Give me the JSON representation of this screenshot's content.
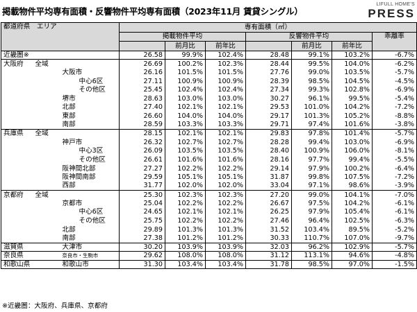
{
  "title": "掲載物件平均専有面積・反響物件平均専有面積（2023年11月 賃貸シングル）",
  "logo": {
    "top": "LIFULL HOME'S",
    "bottom": "PRESS"
  },
  "header": {
    "col_region": "都道府県　エリア",
    "col_area": "専有面積（㎡）",
    "listed": "掲載物件平均",
    "response": "反響物件平均",
    "mom": "前月比",
    "yoy": "前年比",
    "gap": "乖離率"
  },
  "rows": [
    {
      "pref": "近畿圏※",
      "area": "",
      "indent": 0,
      "l": "26.58",
      "lm": "99.9%",
      "ly": "102.4%",
      "r": "28.48",
      "rm": "99.1%",
      "ry": "103.2%",
      "g": "-6.7%",
      "grp": true
    },
    {
      "pref": "大阪府",
      "area": "全域",
      "indent": 0,
      "l": "26.69",
      "lm": "100.2%",
      "ly": "102.3%",
      "r": "28.44",
      "rm": "99.5%",
      "ry": "104.0%",
      "g": "-6.2%",
      "grp": true
    },
    {
      "pref": "",
      "area": "大阪市",
      "indent": 1,
      "l": "26.16",
      "lm": "101.5%",
      "ly": "101.5%",
      "r": "27.76",
      "rm": "99.0%",
      "ry": "103.5%",
      "g": "-5.7%"
    },
    {
      "pref": "",
      "area": "中心6区",
      "indent": 2,
      "l": "27.11",
      "lm": "100.9%",
      "ly": "100.9%",
      "r": "28.39",
      "rm": "98.5%",
      "ry": "104.5%",
      "g": "-4.5%"
    },
    {
      "pref": "",
      "area": "その他区",
      "indent": 2,
      "l": "25.45",
      "lm": "102.4%",
      "ly": "102.4%",
      "r": "27.34",
      "rm": "99.3%",
      "ry": "102.8%",
      "g": "-6.9%"
    },
    {
      "pref": "",
      "area": "堺市",
      "indent": 1,
      "l": "28.63",
      "lm": "103.0%",
      "ly": "103.0%",
      "r": "30.27",
      "rm": "96.1%",
      "ry": "99.5%",
      "g": "-5.4%"
    },
    {
      "pref": "",
      "area": "北部",
      "indent": 1,
      "l": "27.40",
      "lm": "102.1%",
      "ly": "102.1%",
      "r": "29.53",
      "rm": "101.0%",
      "ry": "104.2%",
      "g": "-7.2%"
    },
    {
      "pref": "",
      "area": "東部",
      "indent": 1,
      "l": "26.60",
      "lm": "104.0%",
      "ly": "104.0%",
      "r": "29.17",
      "rm": "101.3%",
      "ry": "105.2%",
      "g": "-8.8%"
    },
    {
      "pref": "",
      "area": "南部",
      "indent": 1,
      "l": "28.59",
      "lm": "103.3%",
      "ly": "103.3%",
      "r": "29.71",
      "rm": "97.4%",
      "ry": "101.6%",
      "g": "-3.8%"
    },
    {
      "pref": "兵庫県",
      "area": "全域",
      "indent": 0,
      "l": "28.15",
      "lm": "102.1%",
      "ly": "102.1%",
      "r": "29.83",
      "rm": "97.8%",
      "ry": "101.4%",
      "g": "-5.7%",
      "grp": true
    },
    {
      "pref": "",
      "area": "神戸市",
      "indent": 1,
      "l": "26.32",
      "lm": "102.7%",
      "ly": "102.7%",
      "r": "28.28",
      "rm": "99.4%",
      "ry": "103.0%",
      "g": "-6.9%"
    },
    {
      "pref": "",
      "area": "中心3区",
      "indent": 2,
      "l": "26.09",
      "lm": "103.5%",
      "ly": "103.5%",
      "r": "28.40",
      "rm": "100.9%",
      "ry": "106.0%",
      "g": "-8.1%"
    },
    {
      "pref": "",
      "area": "その他区",
      "indent": 2,
      "l": "26.61",
      "lm": "101.6%",
      "ly": "101.6%",
      "r": "28.16",
      "rm": "97.7%",
      "ry": "99.4%",
      "g": "-5.5%"
    },
    {
      "pref": "",
      "area": "阪神間北部",
      "indent": 1,
      "l": "27.27",
      "lm": "102.2%",
      "ly": "102.2%",
      "r": "29.14",
      "rm": "97.9%",
      "ry": "100.2%",
      "g": "-6.4%"
    },
    {
      "pref": "",
      "area": "阪神間南部",
      "indent": 1,
      "l": "29.59",
      "lm": "105.1%",
      "ly": "105.1%",
      "r": "31.87",
      "rm": "99.8%",
      "ry": "107.5%",
      "g": "-7.2%"
    },
    {
      "pref": "",
      "area": "西部",
      "indent": 1,
      "l": "31.77",
      "lm": "102.0%",
      "ly": "102.0%",
      "r": "33.04",
      "rm": "97.1%",
      "ry": "98.6%",
      "g": "-3.9%"
    },
    {
      "pref": "京都府",
      "area": "全域",
      "indent": 0,
      "l": "25.30",
      "lm": "102.3%",
      "ly": "102.3%",
      "r": "27.20",
      "rm": "99.0%",
      "ry": "104.1%",
      "g": "-7.0%",
      "grp": true
    },
    {
      "pref": "",
      "area": "京都市",
      "indent": 1,
      "l": "25.04",
      "lm": "102.2%",
      "ly": "102.2%",
      "r": "26.67",
      "rm": "97.5%",
      "ry": "104.2%",
      "g": "-6.1%"
    },
    {
      "pref": "",
      "area": "中心6区",
      "indent": 2,
      "l": "24.65",
      "lm": "102.1%",
      "ly": "102.1%",
      "r": "26.25",
      "rm": "97.9%",
      "ry": "105.4%",
      "g": "-6.1%"
    },
    {
      "pref": "",
      "area": "その他区",
      "indent": 2,
      "l": "25.75",
      "lm": "102.2%",
      "ly": "102.2%",
      "r": "27.46",
      "rm": "96.4%",
      "ry": "102.5%",
      "g": "-6.3%"
    },
    {
      "pref": "",
      "area": "北部",
      "indent": 1,
      "l": "29.89",
      "lm": "101.3%",
      "ly": "101.3%",
      "r": "31.52",
      "rm": "103.4%",
      "ry": "89.5%",
      "g": "-5.2%"
    },
    {
      "pref": "",
      "area": "南部",
      "indent": 1,
      "l": "27.38",
      "lm": "101.2%",
      "ly": "101.2%",
      "r": "30.33",
      "rm": "110.7%",
      "ry": "107.0%",
      "g": "-9.7%"
    },
    {
      "pref": "滋賀県",
      "area": "大津市",
      "indent": 1,
      "l": "30.20",
      "lm": "103.9%",
      "ly": "103.9%",
      "r": "32.03",
      "rm": "96.2%",
      "ry": "102.9%",
      "g": "-5.7%",
      "grp": true
    },
    {
      "pref": "奈良県",
      "area": "奈良市・生駒市",
      "indent": 1,
      "small": true,
      "l": "29.62",
      "lm": "108.0%",
      "ly": "108.0%",
      "r": "31.12",
      "rm": "113.1%",
      "ry": "94.6%",
      "g": "-4.8%",
      "grp": true
    },
    {
      "pref": "和歌山県",
      "area": "和歌山市",
      "indent": 1,
      "l": "31.30",
      "lm": "103.4%",
      "ly": "103.4%",
      "r": "31.78",
      "rm": "98.5%",
      "ry": "97.0%",
      "g": "-1.5%",
      "grp": true,
      "last": true
    }
  ],
  "footnote": "※近畿圏：大阪府、兵庫県、京都府"
}
